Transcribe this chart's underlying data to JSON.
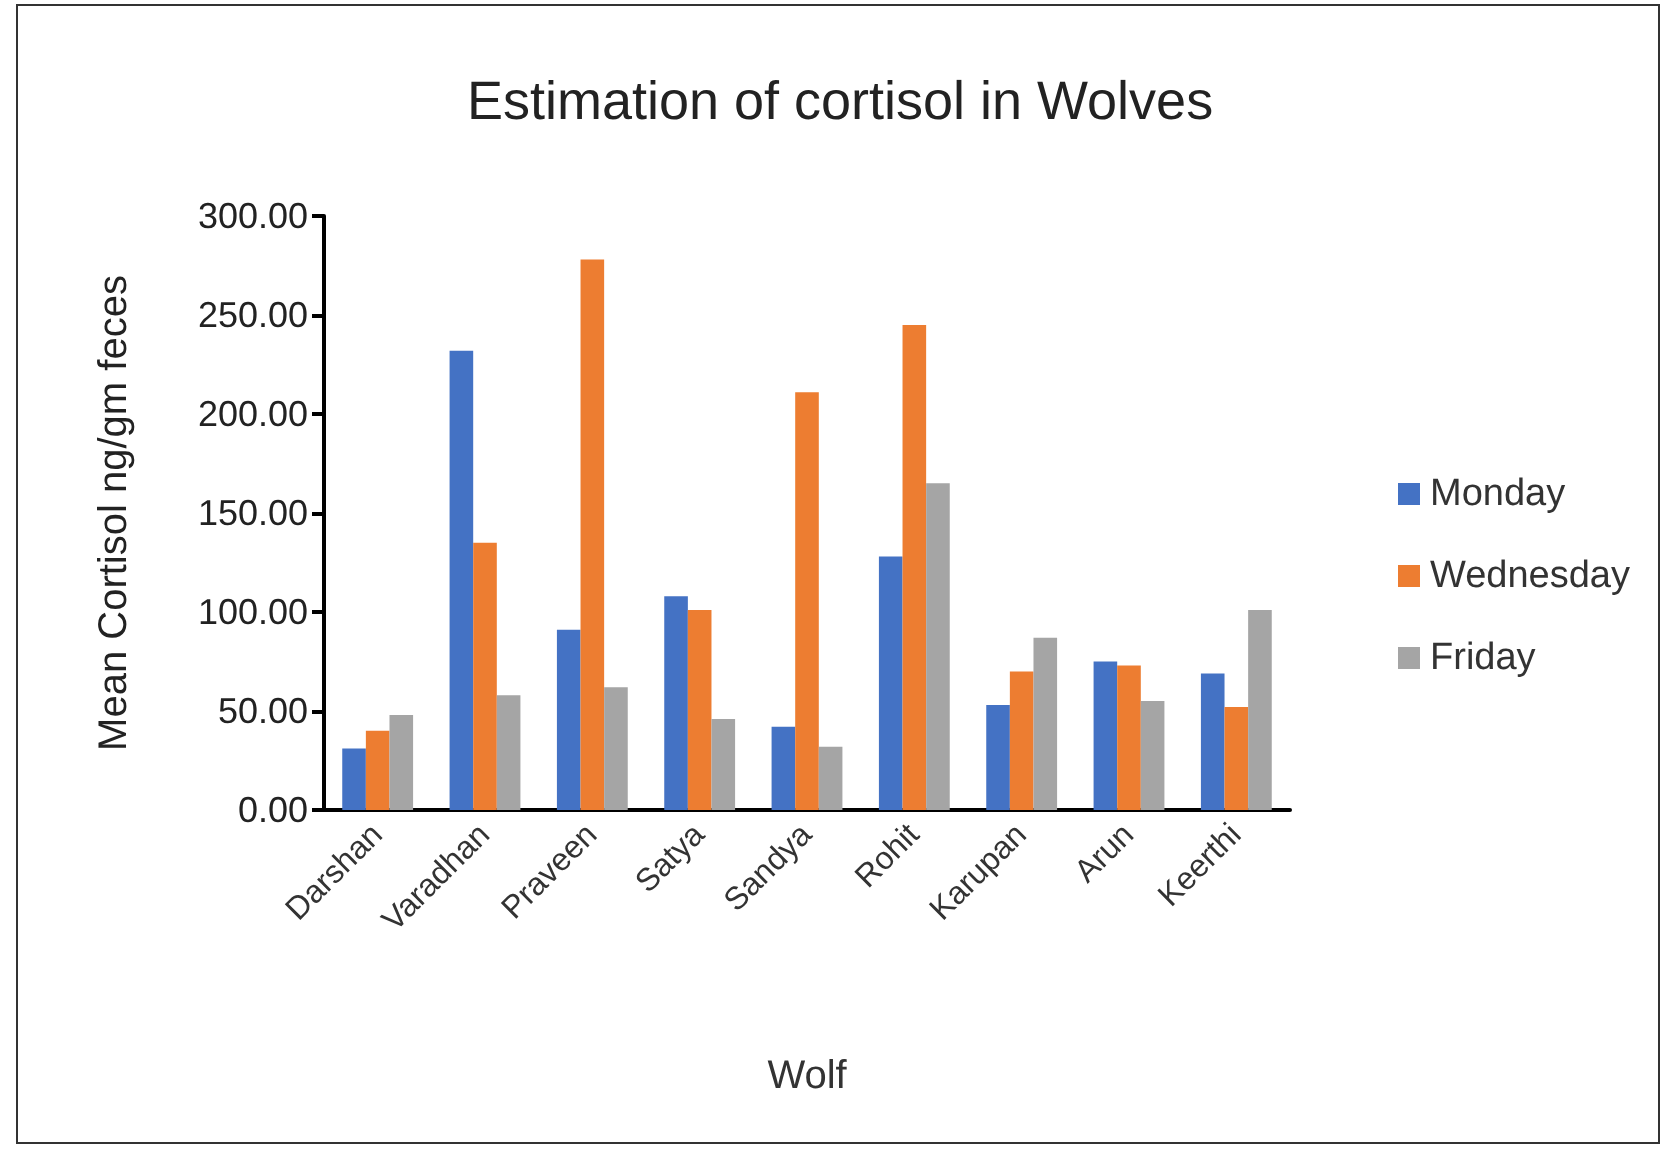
{
  "chart_data": {
    "type": "bar",
    "title": "Estimation of cortisol in Wolves",
    "xlabel": "Wolf",
    "ylabel": "Mean Cortisol ng/gm feces",
    "categories": [
      "Darshan",
      "Varadhan",
      "Praveen",
      "Satya",
      "Sandya",
      "Rohit",
      "Karupan",
      "Arun",
      "Keerthi"
    ],
    "series": [
      {
        "name": "Monday",
        "color": "#4472c4",
        "values": [
          31,
          232,
          91,
          108,
          42,
          128,
          53,
          75,
          69
        ]
      },
      {
        "name": "Wednesday",
        "color": "#ed7d31",
        "values": [
          40,
          135,
          278,
          101,
          211,
          245,
          70,
          73,
          52
        ]
      },
      {
        "name": "Friday",
        "color": "#a5a5a5",
        "values": [
          48,
          58,
          62,
          46,
          32,
          165,
          87,
          55,
          101
        ]
      }
    ],
    "ylim": [
      0,
      300
    ],
    "yticks": [
      {
        "value": 0,
        "label": "0.00"
      },
      {
        "value": 50,
        "label": "50.00"
      },
      {
        "value": 100,
        "label": "100.00"
      },
      {
        "value": 150,
        "label": "150.00"
      },
      {
        "value": 200,
        "label": "200.00"
      },
      {
        "value": 250,
        "label": "250.00"
      },
      {
        "value": 300,
        "label": "300.00"
      }
    ],
    "grid": false,
    "legend": "right"
  }
}
